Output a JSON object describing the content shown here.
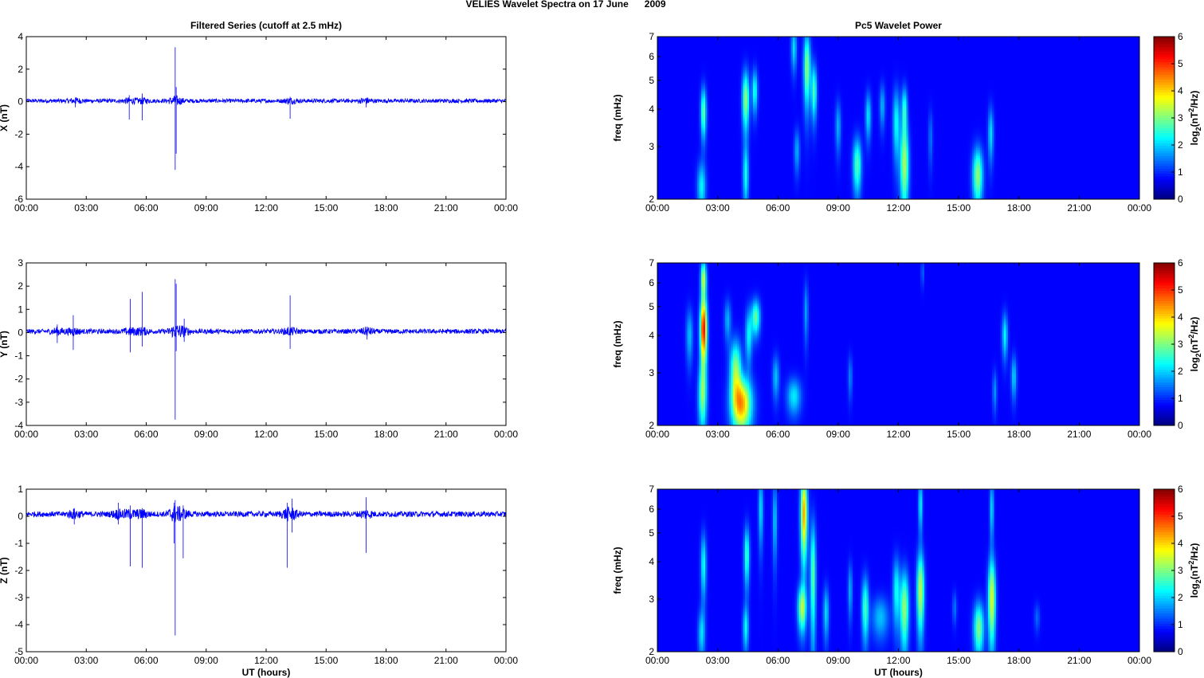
{
  "figure": {
    "suptitle": "VELIES Wavelet Spectra on 17 June      2009"
  },
  "chart_data": [
    {
      "type": "line",
      "panel": "filtered-x",
      "title": "Filtered Series (cutoff at 2.5 mHz)",
      "ylabel": "X (nT)",
      "xlabel": "",
      "x_ticks": [
        "00:00",
        "03:00",
        "06:00",
        "09:00",
        "12:00",
        "15:00",
        "18:00",
        "21:00",
        "00:00"
      ],
      "y_ticks": [
        "4",
        "2",
        "0",
        "-2",
        "-4",
        "-6"
      ],
      "xlim": [
        0,
        24
      ],
      "ylim": [
        -6,
        4
      ],
      "series": [
        {
          "color": "#0000ff",
          "baseline": 0.05,
          "noise_amplitude": 0.12
        }
      ],
      "spikes": [
        {
          "x": 2.45,
          "min": -0.35,
          "max": 0.25
        },
        {
          "x": 5.15,
          "min": -1.1,
          "max": 0.4
        },
        {
          "x": 5.8,
          "min": -1.15,
          "max": 0.5
        },
        {
          "x": 7.45,
          "min": -4.2,
          "max": 3.35
        },
        {
          "x": 7.5,
          "min": -3.2,
          "max": 0.9
        },
        {
          "x": 13.2,
          "min": -1.05,
          "max": 0.3
        },
        {
          "x": 17.0,
          "min": -0.35,
          "max": 0.2
        }
      ]
    },
    {
      "type": "heatmap",
      "panel": "wavelet-x",
      "title": "Pc5 Wavelet Power",
      "ylabel": "freq (mHz)",
      "colorbar_label": "log2(nT2/Hz)",
      "x_ticks": [
        "00:00",
        "03:00",
        "06:00",
        "09:00",
        "12:00",
        "15:00",
        "18:00",
        "21:00",
        "00:00"
      ],
      "y_ticks": [
        "7",
        "6",
        "5",
        "4",
        "3",
        "2"
      ],
      "colorbar_ticks": [
        "6",
        "5",
        "4",
        "3",
        "2",
        "1",
        "0"
      ],
      "xlim": [
        0,
        24
      ],
      "ylim": [
        2,
        7
      ],
      "clim": [
        0,
        6
      ],
      "blobs": [
        {
          "t": 2.3,
          "f": 3.9,
          "v": 2.4,
          "st": 0.1,
          "sf": 0.55
        },
        {
          "t": 2.2,
          "f": 2.2,
          "v": 1.7,
          "st": 0.15,
          "sf": 0.3
        },
        {
          "t": 4.4,
          "f": 4.3,
          "v": 2.8,
          "st": 0.12,
          "sf": 0.7
        },
        {
          "t": 4.85,
          "f": 4.6,
          "v": 1.9,
          "st": 0.1,
          "sf": 0.55
        },
        {
          "t": 4.4,
          "f": 2.4,
          "v": 1.8,
          "st": 0.1,
          "sf": 0.4
        },
        {
          "t": 6.8,
          "f": 6.4,
          "v": 1.5,
          "st": 0.1,
          "sf": 0.8
        },
        {
          "t": 7.45,
          "f": 5.5,
          "v": 2.7,
          "st": 0.12,
          "sf": 1.1
        },
        {
          "t": 7.8,
          "f": 4.6,
          "v": 2.2,
          "st": 0.1,
          "sf": 0.7
        },
        {
          "t": 6.95,
          "f": 2.9,
          "v": 1.2,
          "st": 0.1,
          "sf": 0.35
        },
        {
          "t": 9.0,
          "f": 3.5,
          "v": 1.2,
          "st": 0.1,
          "sf": 0.5
        },
        {
          "t": 9.95,
          "f": 2.6,
          "v": 2.3,
          "st": 0.15,
          "sf": 0.4
        },
        {
          "t": 10.5,
          "f": 3.8,
          "v": 1.6,
          "st": 0.1,
          "sf": 0.5
        },
        {
          "t": 11.2,
          "f": 4.1,
          "v": 1.2,
          "st": 0.1,
          "sf": 0.5
        },
        {
          "t": 11.9,
          "f": 3.6,
          "v": 1.8,
          "st": 0.12,
          "sf": 0.7
        },
        {
          "t": 12.3,
          "f": 2.6,
          "v": 2.9,
          "st": 0.15,
          "sf": 0.6
        },
        {
          "t": 12.3,
          "f": 4.0,
          "v": 2.0,
          "st": 0.1,
          "sf": 0.5
        },
        {
          "t": 15.95,
          "f": 2.4,
          "v": 2.7,
          "st": 0.18,
          "sf": 0.38
        },
        {
          "t": 16.6,
          "f": 3.3,
          "v": 1.5,
          "st": 0.1,
          "sf": 0.5
        },
        {
          "t": 13.6,
          "f": 3.2,
          "v": 0.8,
          "st": 0.08,
          "sf": 0.5
        }
      ]
    },
    {
      "type": "line",
      "panel": "filtered-y",
      "title": "",
      "ylabel": "Y (nT)",
      "xlabel": "",
      "x_ticks": [
        "00:00",
        "03:00",
        "06:00",
        "09:00",
        "12:00",
        "15:00",
        "18:00",
        "21:00",
        "00:00"
      ],
      "y_ticks": [
        "3",
        "2",
        "1",
        "0",
        "-1",
        "-2",
        "-3",
        "-4"
      ],
      "xlim": [
        0,
        24
      ],
      "ylim": [
        -4,
        3
      ],
      "series": [
        {
          "color": "#0000ff",
          "baseline": 0.05,
          "noise_amplitude": 0.1
        }
      ],
      "spikes": [
        {
          "x": 1.55,
          "min": -0.45,
          "max": 0.35
        },
        {
          "x": 2.35,
          "min": -0.75,
          "max": 0.75
        },
        {
          "x": 5.2,
          "min": -0.85,
          "max": 1.45
        },
        {
          "x": 5.8,
          "min": -0.6,
          "max": 1.75
        },
        {
          "x": 7.45,
          "min": -3.75,
          "max": 2.3
        },
        {
          "x": 7.5,
          "min": -0.8,
          "max": 2.1
        },
        {
          "x": 7.9,
          "min": -0.4,
          "max": 0.6
        },
        {
          "x": 13.2,
          "min": -0.7,
          "max": 1.6
        },
        {
          "x": 17.05,
          "min": -0.3,
          "max": 0.25
        }
      ]
    },
    {
      "type": "heatmap",
      "panel": "wavelet-y",
      "title": "",
      "ylabel": "freq (mHz)",
      "colorbar_label": "log2(nT2/Hz)",
      "x_ticks": [
        "00:00",
        "03:00",
        "06:00",
        "09:00",
        "12:00",
        "15:00",
        "18:00",
        "21:00",
        "00:00"
      ],
      "y_ticks": [
        "7",
        "6",
        "5",
        "4",
        "3",
        "2"
      ],
      "colorbar_ticks": [
        "6",
        "5",
        "4",
        "3",
        "2",
        "1",
        "0"
      ],
      "xlim": [
        0,
        24
      ],
      "ylim": [
        2,
        7
      ],
      "clim": [
        0,
        6
      ],
      "blobs": [
        {
          "t": 2.3,
          "f": 4.2,
          "v": 5.2,
          "st": 0.12,
          "sf": 0.75
        },
        {
          "t": 2.3,
          "f": 6.2,
          "v": 3.0,
          "st": 0.1,
          "sf": 0.6
        },
        {
          "t": 2.25,
          "f": 2.5,
          "v": 2.4,
          "st": 0.15,
          "sf": 0.45
        },
        {
          "t": 1.6,
          "f": 4.0,
          "v": 1.3,
          "st": 0.12,
          "sf": 0.6
        },
        {
          "t": 4.2,
          "f": 2.35,
          "v": 4.0,
          "st": 0.35,
          "sf": 0.35
        },
        {
          "t": 3.9,
          "f": 3.1,
          "v": 2.6,
          "st": 0.2,
          "sf": 0.5
        },
        {
          "t": 4.9,
          "f": 4.6,
          "v": 2.4,
          "st": 0.15,
          "sf": 0.45
        },
        {
          "t": 4.55,
          "f": 4.0,
          "v": 1.7,
          "st": 0.12,
          "sf": 0.6
        },
        {
          "t": 3.5,
          "f": 4.5,
          "v": 1.2,
          "st": 0.12,
          "sf": 0.5
        },
        {
          "t": 5.9,
          "f": 2.9,
          "v": 1.3,
          "st": 0.12,
          "sf": 0.35
        },
        {
          "t": 6.8,
          "f": 2.5,
          "v": 1.6,
          "st": 0.25,
          "sf": 0.25
        },
        {
          "t": 7.4,
          "f": 4.8,
          "v": 1.1,
          "st": 0.08,
          "sf": 0.8
        },
        {
          "t": 9.6,
          "f": 2.9,
          "v": 0.9,
          "st": 0.08,
          "sf": 0.35
        },
        {
          "t": 13.2,
          "f": 6.5,
          "v": 0.8,
          "st": 0.05,
          "sf": 0.5
        },
        {
          "t": 17.3,
          "f": 4.0,
          "v": 1.7,
          "st": 0.1,
          "sf": 0.5
        },
        {
          "t": 17.75,
          "f": 2.9,
          "v": 1.4,
          "st": 0.1,
          "sf": 0.35
        },
        {
          "t": 16.8,
          "f": 2.6,
          "v": 1.0,
          "st": 0.08,
          "sf": 0.3
        }
      ]
    },
    {
      "type": "line",
      "panel": "filtered-z",
      "title": "",
      "ylabel": "Z (nT)",
      "xlabel": "UT (hours)",
      "x_ticks": [
        "00:00",
        "03:00",
        "06:00",
        "09:00",
        "12:00",
        "15:00",
        "18:00",
        "21:00",
        "00:00"
      ],
      "y_ticks": [
        "1",
        "0",
        "-1",
        "-2",
        "-3",
        "-4",
        "-5"
      ],
      "xlim": [
        0,
        24
      ],
      "ylim": [
        -5,
        1
      ],
      "series": [
        {
          "color": "#0000ff",
          "baseline": 0.08,
          "noise_amplitude": 0.1
        }
      ],
      "spikes": [
        {
          "x": 2.4,
          "min": -0.3,
          "max": 0.3
        },
        {
          "x": 4.6,
          "min": -0.3,
          "max": 0.5
        },
        {
          "x": 5.2,
          "min": -1.85,
          "max": 0.4
        },
        {
          "x": 5.8,
          "min": -1.9,
          "max": 0.3
        },
        {
          "x": 7.45,
          "min": -4.4,
          "max": 0.6
        },
        {
          "x": 7.4,
          "min": -1.0,
          "max": 0.5
        },
        {
          "x": 7.85,
          "min": -1.55,
          "max": 0.4
        },
        {
          "x": 13.05,
          "min": -1.9,
          "max": 0.5
        },
        {
          "x": 13.3,
          "min": -0.6,
          "max": 0.65
        },
        {
          "x": 17.0,
          "min": -1.35,
          "max": 0.7
        }
      ]
    },
    {
      "type": "heatmap",
      "panel": "wavelet-z",
      "title": "",
      "ylabel": "freq (mHz)",
      "xlabel": "UT (hours)",
      "colorbar_label": "log2(nT2/Hz)",
      "x_ticks": [
        "00:00",
        "03:00",
        "06:00",
        "09:00",
        "12:00",
        "15:00",
        "18:00",
        "21:00",
        "00:00"
      ],
      "y_ticks": [
        "7",
        "6",
        "5",
        "4",
        "3",
        "2"
      ],
      "colorbar_ticks": [
        "6",
        "5",
        "4",
        "3",
        "2",
        "1",
        "0"
      ],
      "xlim": [
        0,
        24
      ],
      "ylim": [
        2,
        7
      ],
      "clim": [
        0,
        6
      ],
      "blobs": [
        {
          "t": 2.3,
          "f": 3.9,
          "v": 1.8,
          "st": 0.1,
          "sf": 0.7
        },
        {
          "t": 2.2,
          "f": 2.3,
          "v": 1.5,
          "st": 0.12,
          "sf": 0.3
        },
        {
          "t": 4.45,
          "f": 4.2,
          "v": 2.1,
          "st": 0.1,
          "sf": 0.7
        },
        {
          "t": 4.4,
          "f": 2.4,
          "v": 1.7,
          "st": 0.1,
          "sf": 0.3
        },
        {
          "t": 5.15,
          "f": 6.0,
          "v": 1.6,
          "st": 0.08,
          "sf": 1.2
        },
        {
          "t": 5.85,
          "f": 5.5,
          "v": 1.4,
          "st": 0.08,
          "sf": 1.2
        },
        {
          "t": 7.3,
          "f": 5.8,
          "v": 4.0,
          "st": 0.12,
          "sf": 1.4
        },
        {
          "t": 7.2,
          "f": 2.8,
          "v": 2.8,
          "st": 0.15,
          "sf": 0.35
        },
        {
          "t": 7.75,
          "f": 3.6,
          "v": 2.4,
          "st": 0.1,
          "sf": 1.2
        },
        {
          "t": 8.4,
          "f": 2.7,
          "v": 1.5,
          "st": 0.1,
          "sf": 0.4
        },
        {
          "t": 9.6,
          "f": 3.2,
          "v": 1.2,
          "st": 0.08,
          "sf": 0.5
        },
        {
          "t": 10.35,
          "f": 2.8,
          "v": 2.2,
          "st": 0.12,
          "sf": 0.5
        },
        {
          "t": 11.1,
          "f": 2.6,
          "v": 1.3,
          "st": 0.3,
          "sf": 0.3
        },
        {
          "t": 11.9,
          "f": 3.2,
          "v": 1.8,
          "st": 0.12,
          "sf": 0.6
        },
        {
          "t": 12.3,
          "f": 2.8,
          "v": 2.8,
          "st": 0.15,
          "sf": 0.6
        },
        {
          "t": 13.1,
          "f": 3.2,
          "v": 3.1,
          "st": 0.13,
          "sf": 0.7
        },
        {
          "t": 13.1,
          "f": 6.2,
          "v": 1.8,
          "st": 0.07,
          "sf": 0.9
        },
        {
          "t": 14.8,
          "f": 2.8,
          "v": 0.8,
          "st": 0.08,
          "sf": 0.25
        },
        {
          "t": 16.0,
          "f": 2.4,
          "v": 2.6,
          "st": 0.18,
          "sf": 0.35
        },
        {
          "t": 16.65,
          "f": 3.0,
          "v": 3.3,
          "st": 0.13,
          "sf": 0.7
        },
        {
          "t": 16.65,
          "f": 6.0,
          "v": 1.6,
          "st": 0.07,
          "sf": 1.0
        },
        {
          "t": 18.9,
          "f": 2.6,
          "v": 0.7,
          "st": 0.1,
          "sf": 0.2
        }
      ]
    }
  ]
}
